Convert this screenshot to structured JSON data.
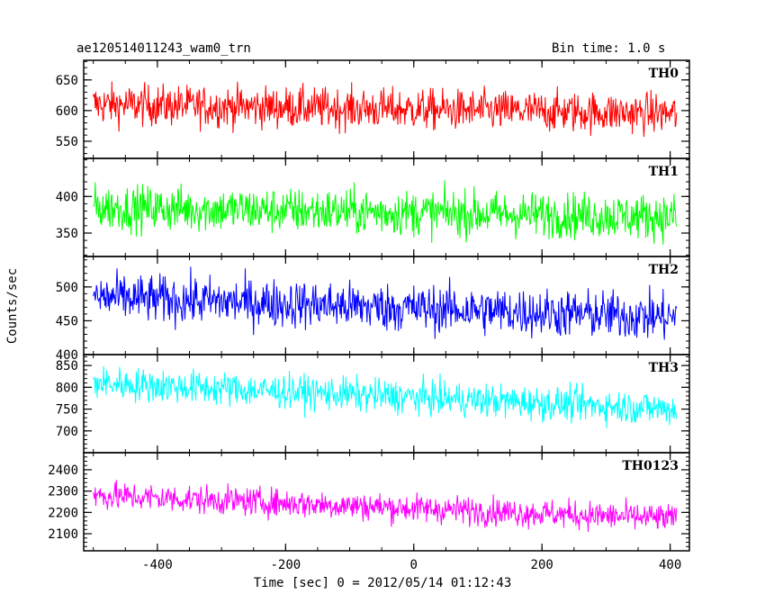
{
  "header": {
    "title": "ae120514011243_wam0_trn",
    "bin_time": "Bin time: 1.0 s"
  },
  "chart_data": {
    "type": "line",
    "xlabel": "Time [sec] 0 = 2012/05/14 01:12:43",
    "ylabel": "Counts/sec",
    "xlim": [
      -515,
      430
    ],
    "xticks": [
      -400,
      -200,
      0,
      200,
      400
    ],
    "x_range": [
      -500,
      410
    ],
    "bin_time_s": 1.0,
    "panels": [
      {
        "name": "TH0",
        "color": "#ff0000",
        "ylim": [
          522,
          682
        ],
        "yticks": [
          550,
          600,
          650
        ],
        "start_level": 610,
        "end_level": 595,
        "amplitude": 30
      },
      {
        "name": "TH1",
        "color": "#00ff00",
        "ylim": [
          318,
          452
        ],
        "yticks": [
          350,
          400
        ],
        "start_level": 385,
        "end_level": 372,
        "amplitude": 28
      },
      {
        "name": "TH2",
        "color": "#0000ff",
        "ylim": [
          400,
          545
        ],
        "yticks": [
          400,
          450,
          500
        ],
        "start_level": 485,
        "end_level": 455,
        "amplitude": 32
      },
      {
        "name": "TH3",
        "color": "#00ffff",
        "ylim": [
          650,
          875
        ],
        "yticks": [
          700,
          750,
          800,
          850
        ],
        "start_level": 810,
        "end_level": 750,
        "amplitude": 35
      },
      {
        "name": "TH0123",
        "color": "#ff00ff",
        "ylim": [
          2020,
          2480
        ],
        "yticks": [
          2100,
          2200,
          2300,
          2400
        ],
        "start_level": 2280,
        "end_level": 2170,
        "amplitude": 60
      }
    ]
  }
}
